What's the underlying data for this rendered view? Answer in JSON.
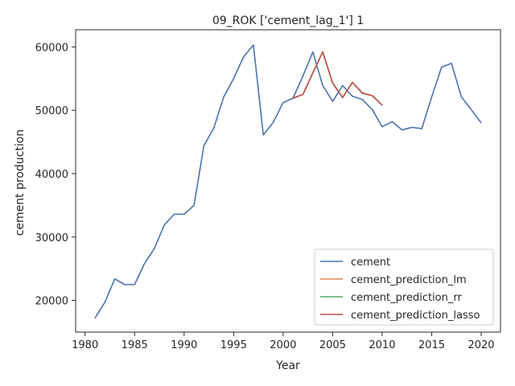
{
  "chart_data": {
    "type": "line",
    "title": "09_ROK ['cement_lag_1'] 1",
    "xlabel": "Year",
    "ylabel": "cement production",
    "xlim": [
      1979.05,
      2021.95
    ],
    "ylim": [
      15000,
      62700
    ],
    "xticks": [
      1980,
      1985,
      1990,
      1995,
      2000,
      2005,
      2010,
      2015,
      2020
    ],
    "yticks": [
      20000,
      30000,
      40000,
      50000,
      60000
    ],
    "grid": false,
    "legend_position": "lower-right",
    "series": [
      {
        "name": "cement",
        "color": "#4c72b0",
        "x": [
          1981,
          1982,
          1983,
          1984,
          1985,
          1986,
          1987,
          1988,
          1989,
          1990,
          1991,
          1992,
          1993,
          1994,
          1995,
          1996,
          1997,
          1998,
          1999,
          2000,
          2001,
          2002,
          2003,
          2004,
          2005,
          2006,
          2007,
          2008,
          2009,
          2010,
          2011,
          2012,
          2013,
          2014,
          2015,
          2016,
          2017,
          2018,
          2019,
          2020
        ],
        "y": [
          17200,
          19700,
          23400,
          22500,
          22500,
          25800,
          28200,
          31900,
          33600,
          33600,
          35000,
          44400,
          47200,
          52100,
          55000,
          58400,
          60300,
          46100,
          48100,
          51200,
          51900,
          55400,
          59200,
          53900,
          51400,
          53900,
          52200,
          51700,
          50100,
          47400,
          48200,
          46900,
          47300,
          47100,
          52100,
          56800,
          57400,
          52100,
          50100,
          48000
        ]
      },
      {
        "name": "cement_prediction_lm",
        "color": "#dd8452",
        "x": [
          2001,
          2002,
          2003,
          2004,
          2005,
          2006,
          2007,
          2008,
          2009,
          2010
        ],
        "y": [
          51900,
          52500,
          55900,
          59200,
          54300,
          52000,
          54400,
          52700,
          52300,
          50800
        ]
      },
      {
        "name": "cement_prediction_rr",
        "color": "#55a868",
        "x": [
          2001,
          2002,
          2003,
          2004,
          2005,
          2006,
          2007,
          2008,
          2009,
          2010
        ],
        "y": [
          51900,
          52500,
          55900,
          59200,
          54300,
          52000,
          54400,
          52700,
          52300,
          50800
        ]
      },
      {
        "name": "cement_prediction_lasso",
        "color": "#c44e52",
        "x": [
          2001,
          2002,
          2003,
          2004,
          2005,
          2006,
          2007,
          2008,
          2009,
          2010
        ],
        "y": [
          51900,
          52500,
          55900,
          59200,
          54300,
          52000,
          54400,
          52700,
          52300,
          50800
        ]
      }
    ]
  }
}
